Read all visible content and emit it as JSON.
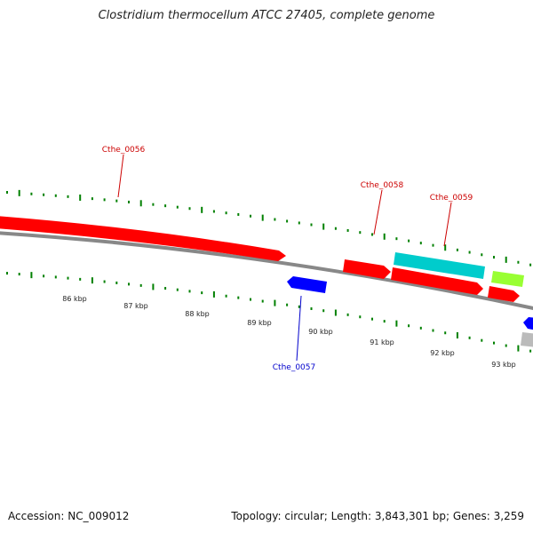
{
  "title": "Clostridium thermocellum ATCC 27405, complete genome",
  "footer": {
    "accession": "Accession: NC_009012",
    "summary": "Topology: circular; Length: 3,843,301 bp; Genes: 3,259"
  },
  "colors": {
    "forward_gene": "#ff0000",
    "reverse_gene": "#0000ff",
    "rna_gene": "#00cccc",
    "other_feature": "#99ff33",
    "pseudo_feature": "#bbbbbb",
    "backbone": "#888888",
    "tick": "#008000",
    "gene_label_forward": "#cc0000",
    "gene_label_reverse": "#0000cc"
  },
  "scale_labels": [
    "86 kbp",
    "87 kbp",
    "88 kbp",
    "89 kbp",
    "90 kbp",
    "91 kbp",
    "92 kbp",
    "93 kbp"
  ],
  "gene_labels": [
    {
      "text": "Cthe_0056",
      "strand": "forward"
    },
    {
      "text": "Cthe_0058",
      "strand": "forward"
    },
    {
      "text": "Cthe_0059",
      "strand": "forward"
    },
    {
      "text": "Cthe_0057",
      "strand": "reverse"
    }
  ]
}
